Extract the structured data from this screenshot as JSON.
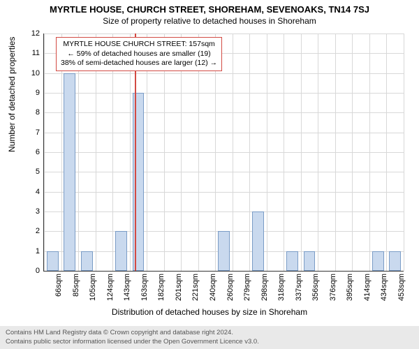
{
  "title": "MYRTLE HOUSE, CHURCH STREET, SHOREHAM, SEVENOAKS, TN14 7SJ",
  "subtitle": "Size of property relative to detached houses in Shoreham",
  "ylabel": "Number of detached properties",
  "xlabel": "Distribution of detached houses by size in Shoreham",
  "chart": {
    "type": "histogram",
    "ylim": [
      0,
      12
    ],
    "ytick_step": 1,
    "bar_color": "#c9d9ee",
    "bar_border_color": "#7a9cc6",
    "grid_color": "#d8d8d8",
    "background_color": "#ffffff",
    "marker_color": "#d24a43",
    "marker_position_sqm": 157,
    "x_categories": [
      "66sqm",
      "85sqm",
      "105sqm",
      "124sqm",
      "143sqm",
      "163sqm",
      "182sqm",
      "201sqm",
      "221sqm",
      "240sqm",
      "260sqm",
      "279sqm",
      "298sqm",
      "318sqm",
      "337sqm",
      "356sqm",
      "376sqm",
      "395sqm",
      "414sqm",
      "434sqm",
      "453sqm"
    ],
    "values": [
      1,
      10,
      1,
      0,
      2,
      9,
      0,
      0,
      0,
      0,
      2,
      0,
      3,
      0,
      1,
      1,
      0,
      0,
      0,
      1,
      1
    ],
    "bar_width_ratio": 0.68
  },
  "annotation": {
    "line1": "MYRTLE HOUSE CHURCH STREET: 157sqm",
    "line2": "← 59% of detached houses are smaller (19)",
    "line3": "38% of semi-detached houses are larger (12) →"
  },
  "footer": {
    "line1": "Contains HM Land Registry data © Crown copyright and database right 2024.",
    "line2": "Contains public sector information licensed under the Open Government Licence v3.0."
  }
}
